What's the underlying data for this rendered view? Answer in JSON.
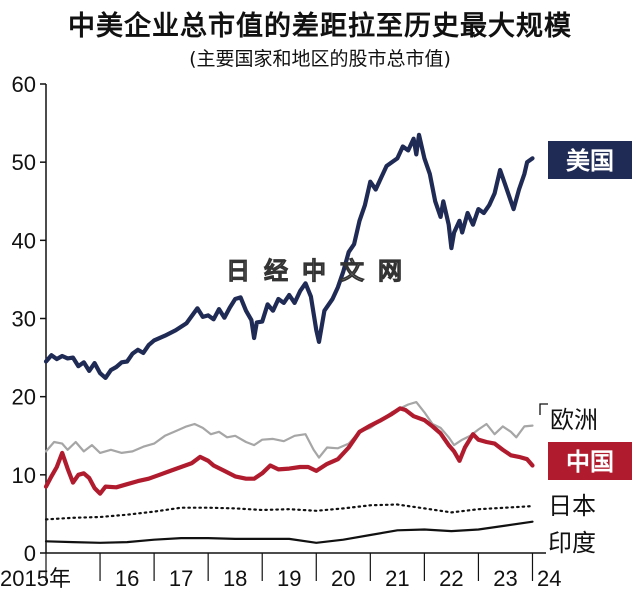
{
  "title": "中美企业总市值的差距拉至历史最大规模",
  "subtitle": "(主要国家和地区的股市总市值)",
  "watermark": "日经中文网",
  "chart_data": {
    "type": "line",
    "ylim": [
      0,
      60
    ],
    "yticks": [
      0,
      10,
      20,
      30,
      40,
      50,
      60
    ],
    "xlim": [
      2015.0,
      2024.25
    ],
    "xticks": [
      {
        "value": 2015.0,
        "label": "2015年"
      },
      {
        "value": 2016.0,
        "label": "16"
      },
      {
        "value": 2017.0,
        "label": "17"
      },
      {
        "value": 2018.0,
        "label": "18"
      },
      {
        "value": 2019.0,
        "label": "19"
      },
      {
        "value": 2020.0,
        "label": "20"
      },
      {
        "value": 2021.0,
        "label": "21"
      },
      {
        "value": 2022.0,
        "label": "22"
      },
      {
        "value": 2023.0,
        "label": "23"
      },
      {
        "value": 2024.0,
        "label": "24"
      }
    ],
    "series": [
      {
        "name": "美国",
        "color": "#1f2a55",
        "style": "solid",
        "label_style": "box",
        "points": [
          [
            2015.0,
            24.5
          ],
          [
            2015.1,
            25.3
          ],
          [
            2015.2,
            24.8
          ],
          [
            2015.3,
            25.2
          ],
          [
            2015.4,
            24.9
          ],
          [
            2015.5,
            25.0
          ],
          [
            2015.6,
            23.9
          ],
          [
            2015.7,
            24.4
          ],
          [
            2015.8,
            23.3
          ],
          [
            2015.9,
            24.3
          ],
          [
            2016.0,
            23.0
          ],
          [
            2016.1,
            22.4
          ],
          [
            2016.2,
            23.4
          ],
          [
            2016.3,
            23.8
          ],
          [
            2016.4,
            24.4
          ],
          [
            2016.5,
            24.5
          ],
          [
            2016.6,
            25.5
          ],
          [
            2016.7,
            26.0
          ],
          [
            2016.8,
            25.6
          ],
          [
            2016.9,
            26.6
          ],
          [
            2017.0,
            27.2
          ],
          [
            2017.2,
            27.8
          ],
          [
            2017.4,
            28.5
          ],
          [
            2017.6,
            29.4
          ],
          [
            2017.8,
            31.3
          ],
          [
            2017.9,
            30.2
          ],
          [
            2018.0,
            30.4
          ],
          [
            2018.1,
            29.9
          ],
          [
            2018.2,
            31.2
          ],
          [
            2018.3,
            30.1
          ],
          [
            2018.4,
            31.4
          ],
          [
            2018.5,
            32.5
          ],
          [
            2018.6,
            32.7
          ],
          [
            2018.7,
            31.0
          ],
          [
            2018.8,
            29.8
          ],
          [
            2018.85,
            27.5
          ],
          [
            2018.9,
            29.5
          ],
          [
            2019.0,
            29.6
          ],
          [
            2019.1,
            31.8
          ],
          [
            2019.2,
            31.0
          ],
          [
            2019.3,
            32.5
          ],
          [
            2019.4,
            32.0
          ],
          [
            2019.5,
            33.0
          ],
          [
            2019.6,
            32.0
          ],
          [
            2019.7,
            33.5
          ],
          [
            2019.8,
            34.5
          ],
          [
            2019.9,
            32.8
          ],
          [
            2020.0,
            28.5
          ],
          [
            2020.05,
            27.0
          ],
          [
            2020.15,
            31.0
          ],
          [
            2020.3,
            32.5
          ],
          [
            2020.4,
            34.0
          ],
          [
            2020.5,
            36.0
          ],
          [
            2020.6,
            38.5
          ],
          [
            2020.7,
            39.5
          ],
          [
            2020.8,
            42.5
          ],
          [
            2020.9,
            44.5
          ],
          [
            2021.0,
            47.5
          ],
          [
            2021.1,
            46.5
          ],
          [
            2021.2,
            48.0
          ],
          [
            2021.3,
            49.5
          ],
          [
            2021.4,
            50.0
          ],
          [
            2021.5,
            50.5
          ],
          [
            2021.6,
            52.0
          ],
          [
            2021.7,
            51.5
          ],
          [
            2021.8,
            53.0
          ],
          [
            2021.85,
            51.0
          ],
          [
            2021.9,
            53.5
          ],
          [
            2022.0,
            50.5
          ],
          [
            2022.1,
            48.5
          ],
          [
            2022.2,
            45.0
          ],
          [
            2022.3,
            43.0
          ],
          [
            2022.35,
            45.0
          ],
          [
            2022.45,
            42.0
          ],
          [
            2022.5,
            39.0
          ],
          [
            2022.55,
            41.0
          ],
          [
            2022.65,
            42.5
          ],
          [
            2022.7,
            41.0
          ],
          [
            2022.8,
            43.5
          ],
          [
            2022.9,
            42.0
          ],
          [
            2023.0,
            44.0
          ],
          [
            2023.1,
            43.5
          ],
          [
            2023.2,
            44.5
          ],
          [
            2023.3,
            46.0
          ],
          [
            2023.4,
            49.0
          ],
          [
            2023.5,
            47.0
          ],
          [
            2023.6,
            45.0
          ],
          [
            2023.65,
            44.0
          ],
          [
            2023.75,
            46.5
          ],
          [
            2023.85,
            48.5
          ],
          [
            2023.9,
            50.0
          ],
          [
            2024.0,
            50.5
          ]
        ]
      },
      {
        "name": "欧洲",
        "color": "#a6a6a6",
        "style": "solid",
        "label_style": "text",
        "points": [
          [
            2015.0,
            13.0
          ],
          [
            2015.15,
            14.2
          ],
          [
            2015.3,
            14.0
          ],
          [
            2015.4,
            13.2
          ],
          [
            2015.55,
            14.2
          ],
          [
            2015.7,
            13.0
          ],
          [
            2015.85,
            13.8
          ],
          [
            2016.0,
            12.8
          ],
          [
            2016.2,
            13.2
          ],
          [
            2016.4,
            12.8
          ],
          [
            2016.6,
            13.0
          ],
          [
            2016.8,
            13.6
          ],
          [
            2017.0,
            14.0
          ],
          [
            2017.2,
            15.0
          ],
          [
            2017.4,
            15.6
          ],
          [
            2017.6,
            16.2
          ],
          [
            2017.75,
            16.5
          ],
          [
            2017.9,
            16.0
          ],
          [
            2018.05,
            15.2
          ],
          [
            2018.2,
            15.5
          ],
          [
            2018.35,
            14.8
          ],
          [
            2018.5,
            15.0
          ],
          [
            2018.7,
            14.2
          ],
          [
            2018.85,
            13.8
          ],
          [
            2019.0,
            14.5
          ],
          [
            2019.2,
            14.6
          ],
          [
            2019.4,
            14.3
          ],
          [
            2019.6,
            15.0
          ],
          [
            2019.8,
            15.2
          ],
          [
            2019.95,
            13.2
          ],
          [
            2020.05,
            12.2
          ],
          [
            2020.2,
            13.5
          ],
          [
            2020.4,
            13.4
          ],
          [
            2020.6,
            14.0
          ],
          [
            2020.8,
            15.5
          ],
          [
            2021.0,
            16.0
          ],
          [
            2021.2,
            17.0
          ],
          [
            2021.4,
            18.0
          ],
          [
            2021.55,
            18.5
          ],
          [
            2021.7,
            19.0
          ],
          [
            2021.85,
            19.3
          ],
          [
            2022.0,
            18.0
          ],
          [
            2022.15,
            16.5
          ],
          [
            2022.3,
            16.0
          ],
          [
            2022.45,
            14.8
          ],
          [
            2022.55,
            13.8
          ],
          [
            2022.7,
            14.5
          ],
          [
            2022.85,
            15.0
          ],
          [
            2023.0,
            15.8
          ],
          [
            2023.15,
            16.5
          ],
          [
            2023.3,
            15.2
          ],
          [
            2023.45,
            16.2
          ],
          [
            2023.6,
            15.5
          ],
          [
            2023.7,
            14.8
          ],
          [
            2023.85,
            16.2
          ],
          [
            2024.0,
            16.3
          ]
        ]
      },
      {
        "name": "中国",
        "color": "#b01c2e",
        "style": "solid",
        "label_style": "box",
        "points": [
          [
            2015.0,
            8.5
          ],
          [
            2015.1,
            9.8
          ],
          [
            2015.2,
            11.0
          ],
          [
            2015.3,
            12.8
          ],
          [
            2015.4,
            10.8
          ],
          [
            2015.5,
            9.0
          ],
          [
            2015.6,
            10.0
          ],
          [
            2015.7,
            10.2
          ],
          [
            2015.8,
            9.6
          ],
          [
            2015.9,
            8.3
          ],
          [
            2016.0,
            7.6
          ],
          [
            2016.1,
            8.5
          ],
          [
            2016.3,
            8.4
          ],
          [
            2016.5,
            8.8
          ],
          [
            2016.7,
            9.2
          ],
          [
            2016.9,
            9.5
          ],
          [
            2017.1,
            10.0
          ],
          [
            2017.3,
            10.5
          ],
          [
            2017.5,
            11.0
          ],
          [
            2017.7,
            11.5
          ],
          [
            2017.85,
            12.3
          ],
          [
            2018.0,
            11.8
          ],
          [
            2018.1,
            11.2
          ],
          [
            2018.3,
            10.5
          ],
          [
            2018.5,
            9.8
          ],
          [
            2018.7,
            9.5
          ],
          [
            2018.85,
            9.5
          ],
          [
            2019.0,
            10.2
          ],
          [
            2019.15,
            11.2
          ],
          [
            2019.3,
            10.7
          ],
          [
            2019.5,
            10.8
          ],
          [
            2019.7,
            11.0
          ],
          [
            2019.85,
            11.0
          ],
          [
            2020.0,
            10.5
          ],
          [
            2020.2,
            11.4
          ],
          [
            2020.4,
            12.0
          ],
          [
            2020.6,
            13.5
          ],
          [
            2020.8,
            15.5
          ],
          [
            2021.0,
            16.3
          ],
          [
            2021.2,
            17.0
          ],
          [
            2021.4,
            17.8
          ],
          [
            2021.55,
            18.5
          ],
          [
            2021.65,
            18.3
          ],
          [
            2021.8,
            17.5
          ],
          [
            2022.0,
            17.0
          ],
          [
            2022.15,
            16.2
          ],
          [
            2022.3,
            15.3
          ],
          [
            2022.45,
            13.8
          ],
          [
            2022.55,
            13.0
          ],
          [
            2022.65,
            11.8
          ],
          [
            2022.75,
            13.5
          ],
          [
            2022.9,
            15.2
          ],
          [
            2023.0,
            14.5
          ],
          [
            2023.15,
            14.2
          ],
          [
            2023.3,
            14.0
          ],
          [
            2023.45,
            13.2
          ],
          [
            2023.6,
            12.5
          ],
          [
            2023.75,
            12.3
          ],
          [
            2023.9,
            12.0
          ],
          [
            2024.0,
            11.2
          ]
        ]
      },
      {
        "name": "日本",
        "color": "#111111",
        "style": "dotted",
        "label_style": "text",
        "points": [
          [
            2015.0,
            4.3
          ],
          [
            2015.5,
            4.5
          ],
          [
            2016.0,
            4.6
          ],
          [
            2016.5,
            4.9
          ],
          [
            2017.0,
            5.3
          ],
          [
            2017.5,
            5.8
          ],
          [
            2018.0,
            5.8
          ],
          [
            2018.5,
            5.7
          ],
          [
            2019.0,
            5.5
          ],
          [
            2019.5,
            5.6
          ],
          [
            2020.0,
            5.4
          ],
          [
            2020.5,
            5.7
          ],
          [
            2021.0,
            6.1
          ],
          [
            2021.5,
            6.2
          ],
          [
            2022.0,
            5.7
          ],
          [
            2022.5,
            5.2
          ],
          [
            2023.0,
            5.6
          ],
          [
            2023.5,
            5.8
          ],
          [
            2024.0,
            6.0
          ]
        ]
      },
      {
        "name": "印度",
        "color": "#111111",
        "style": "solid",
        "label_style": "text",
        "points": [
          [
            2015.0,
            1.5
          ],
          [
            2015.5,
            1.4
          ],
          [
            2016.0,
            1.3
          ],
          [
            2016.5,
            1.4
          ],
          [
            2017.0,
            1.7
          ],
          [
            2017.5,
            1.9
          ],
          [
            2018.0,
            1.9
          ],
          [
            2018.5,
            1.8
          ],
          [
            2019.0,
            1.8
          ],
          [
            2019.5,
            1.8
          ],
          [
            2020.0,
            1.3
          ],
          [
            2020.5,
            1.7
          ],
          [
            2021.0,
            2.3
          ],
          [
            2021.5,
            2.9
          ],
          [
            2022.0,
            3.0
          ],
          [
            2022.5,
            2.8
          ],
          [
            2023.0,
            3.0
          ],
          [
            2023.5,
            3.5
          ],
          [
            2024.0,
            4.0
          ]
        ]
      }
    ]
  }
}
